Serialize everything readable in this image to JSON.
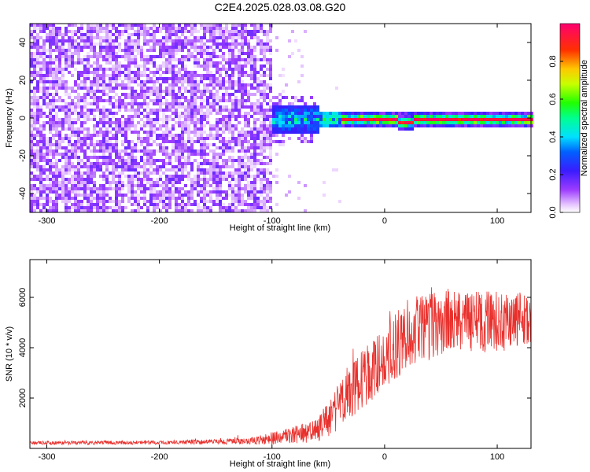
{
  "title": "C2E4.2025.028.03.08.G20",
  "chart_data": [
    {
      "type": "heatmap",
      "xlabel": "Height of straight line (km)",
      "ylabel": "Frequency (Hz)",
      "xlim": [
        -315,
        130
      ],
      "ylim": [
        -50,
        50
      ],
      "xticks": [
        -300,
        -200,
        -100,
        0,
        100
      ],
      "yticks": [
        -40,
        -20,
        0,
        20,
        40
      ],
      "colorbar": {
        "label": "Normalized spectral amplitude",
        "range": [
          0,
          1
        ],
        "ticks": [
          0.0,
          0.2,
          0.4,
          0.6,
          0.8
        ],
        "colormap": "hsv-reversed (magenta-red-yellow-green-cyan-blue-violet-white)"
      },
      "regions": [
        {
          "x": [
            -315,
            -100
          ],
          "y": [
            -50,
            50
          ],
          "amplitude": 0.1,
          "pattern": "noise"
        },
        {
          "x": [
            -110,
            -40
          ],
          "y": [
            -8,
            8
          ],
          "amplitude": 0.35,
          "pattern": "scattered signal"
        },
        {
          "x": [
            -40,
            130
          ],
          "y": [
            -2,
            2
          ],
          "amplitude": 0.95,
          "pattern": "strong tone near 0 Hz"
        }
      ]
    },
    {
      "type": "line",
      "xlabel": "Height of straight line (km)",
      "ylabel": "SNR (10 * v/v)",
      "xlim": [
        -315,
        130
      ],
      "ylim": [
        0,
        7500
      ],
      "xticks": [
        -300,
        -200,
        -100,
        0,
        100
      ],
      "yticks": [
        2000,
        4000,
        6000
      ],
      "color": "#e8302c",
      "envelope": [
        {
          "x": -315,
          "base": 200,
          "spread": 150
        },
        {
          "x": -200,
          "base": 220,
          "spread": 150
        },
        {
          "x": -120,
          "base": 260,
          "spread": 250
        },
        {
          "x": -100,
          "base": 350,
          "spread": 500
        },
        {
          "x": -60,
          "base": 600,
          "spread": 900
        },
        {
          "x": -40,
          "base": 1500,
          "spread": 2000
        },
        {
          "x": -20,
          "base": 2500,
          "spread": 2300
        },
        {
          "x": 0,
          "base": 3300,
          "spread": 2500
        },
        {
          "x": 20,
          "base": 4300,
          "spread": 2800
        },
        {
          "x": 50,
          "base": 4700,
          "spread": 2600
        },
        {
          "x": 100,
          "base": 4800,
          "spread": 2400
        },
        {
          "x": 130,
          "base": 4900,
          "spread": 2200
        }
      ]
    }
  ]
}
